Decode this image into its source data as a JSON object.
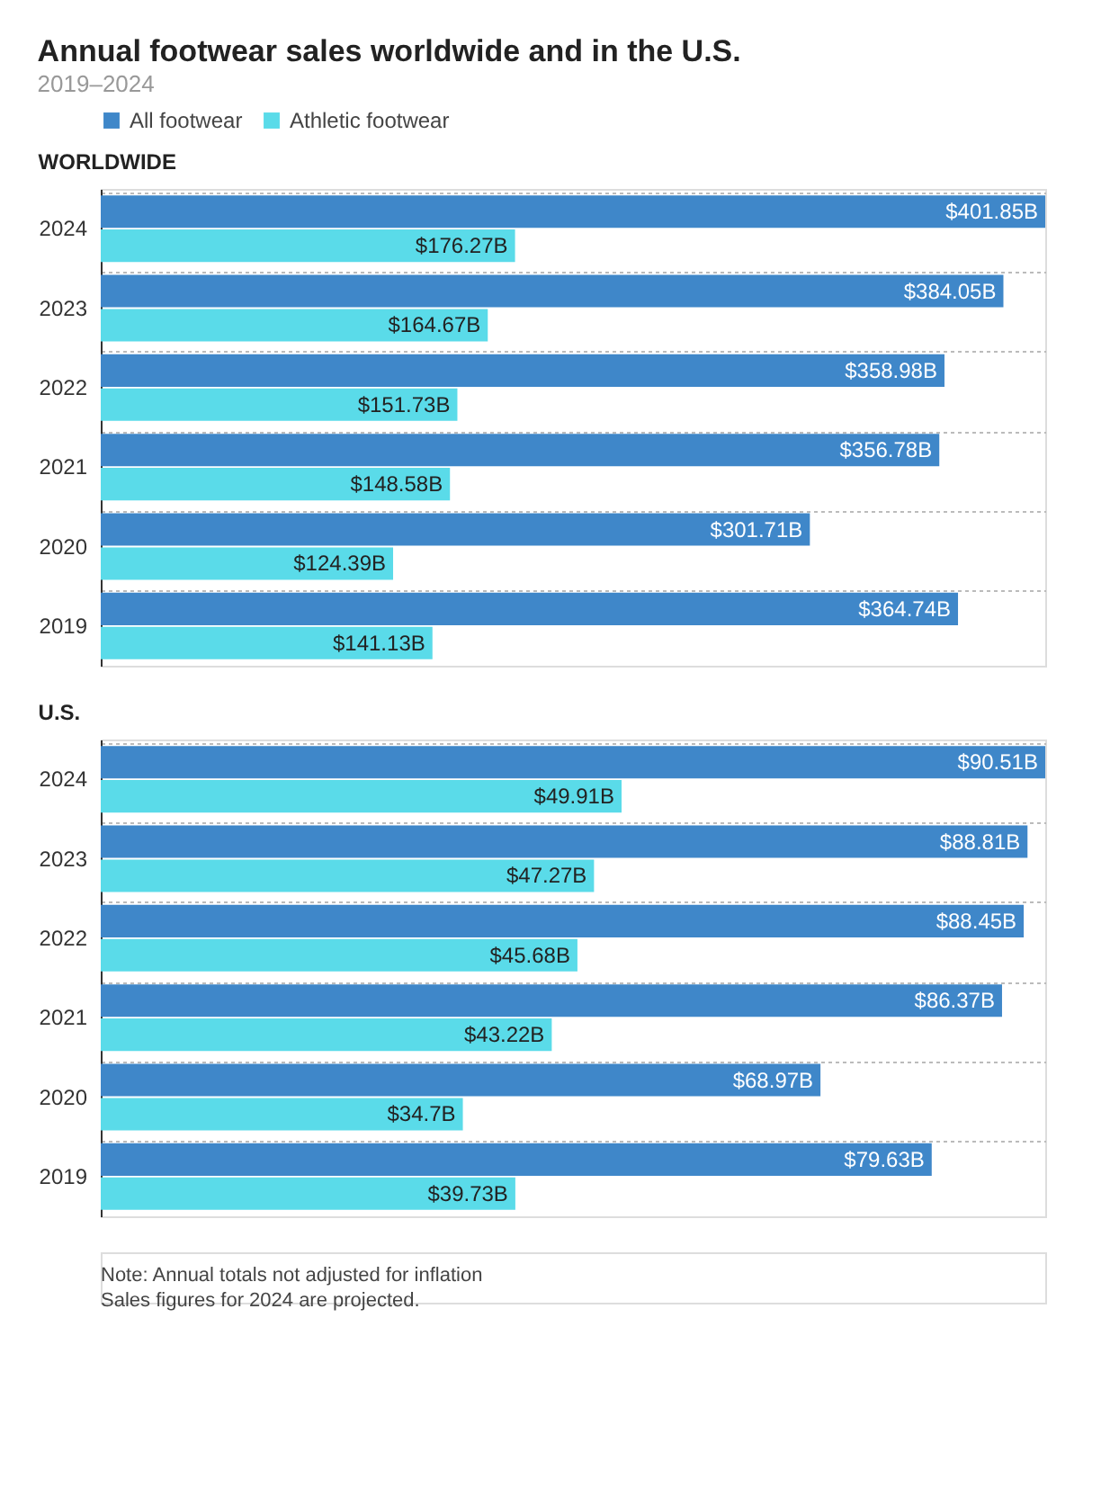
{
  "chart_data": [
    {
      "type": "bar",
      "orientation": "horizontal",
      "title": "Annual footwear sales worldwide and in the U.S.",
      "subtitle": "2019–2024",
      "annotations": [
        "WORLDWIDE"
      ],
      "legend": "top left",
      "grid": "y",
      "categories": [
        "2024",
        "2023",
        "2022",
        "2021",
        "2020",
        "2019"
      ],
      "series": [
        {
          "name": "All footwear",
          "color": "#3f87c9",
          "values": [
            401.85,
            384.05,
            358.98,
            356.78,
            301.71,
            364.74
          ],
          "value_labels": [
            "$401.85B",
            "$384.05B",
            "$358.98B",
            "$356.78B",
            "$301.71B",
            "$364.74B"
          ]
        },
        {
          "name": "Athletic footwear",
          "color": "#5adbe9",
          "values": [
            176.27,
            164.67,
            151.73,
            148.58,
            124.39,
            141.13
          ],
          "value_labels": [
            "$176.27B",
            "$164.67B",
            "$151.73B",
            "$148.58B",
            "$124.39B",
            "$141.13B"
          ]
        }
      ]
    },
    {
      "type": "bar",
      "orientation": "horizontal",
      "title": "U.S.",
      "grid": "y",
      "categories": [
        "2024",
        "2023",
        "2022",
        "2021",
        "2020",
        "2019"
      ],
      "annotations": [
        "Note: Annual totals not adjusted for inflation",
        "Sales figures for 2024 are projected."
      ],
      "series": [
        {
          "name": "All footwear",
          "color": "#3f87c9",
          "values": [
            90.51,
            88.81,
            88.45,
            86.37,
            68.97,
            79.63
          ],
          "value_labels": [
            "$90.51B",
            "$88.81B",
            "$88.45B",
            "$86.37B",
            "$68.97B",
            "$79.63B"
          ]
        },
        {
          "name": "Athletic footwear",
          "color": "#5adbe9",
          "values": [
            49.91,
            47.27,
            45.68,
            43.22,
            34.7,
            39.73
          ],
          "value_labels": [
            "$49.91B",
            "$47.27B",
            "$45.68B",
            "$43.22B",
            "$34.7B",
            "$39.73B"
          ]
        }
      ]
    }
  ]
}
